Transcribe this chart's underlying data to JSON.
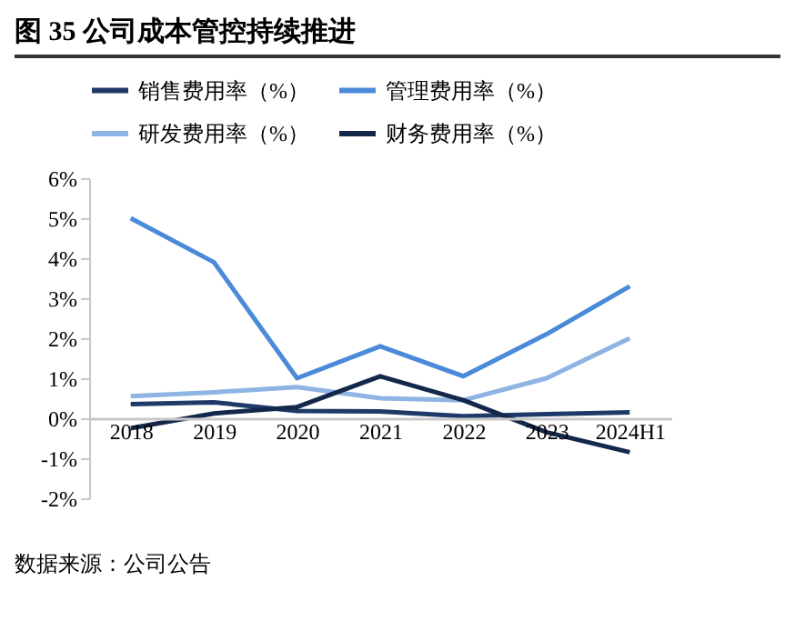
{
  "chart_data": {
    "type": "line",
    "title": "图 35 公司成本管控持续推进",
    "categories": [
      "2018",
      "2019",
      "2020",
      "2021",
      "2022",
      "2023",
      "2024H1"
    ],
    "series": [
      {
        "name": "销售费用率（%）",
        "color": "#1f3a68",
        "values": [
          0.35,
          0.4,
          0.18,
          0.17,
          0.05,
          0.1,
          0.15
        ]
      },
      {
        "name": "管理费用率（%）",
        "color": "#4a8ad8",
        "values": [
          5.0,
          3.9,
          1.0,
          1.8,
          1.05,
          2.1,
          3.3
        ]
      },
      {
        "name": "研发费用率（%）",
        "color": "#8db4e2",
        "values": [
          0.55,
          0.65,
          0.78,
          0.5,
          0.45,
          1.0,
          2.0
        ]
      },
      {
        "name": "财务费用率（%）",
        "color": "#14284b",
        "values": [
          -0.25,
          0.12,
          0.28,
          1.05,
          0.45,
          -0.35,
          -0.85
        ]
      }
    ],
    "ylim": [
      -2,
      6
    ],
    "yticks": [
      {
        "value": -2,
        "label": "-2%"
      },
      {
        "value": -1,
        "label": "-1%"
      },
      {
        "value": 0,
        "label": "0%"
      },
      {
        "value": 1,
        "label": "1%"
      },
      {
        "value": 2,
        "label": "2%"
      },
      {
        "value": 3,
        "label": "3%"
      },
      {
        "value": 4,
        "label": "4%"
      },
      {
        "value": 5,
        "label": "5%"
      },
      {
        "value": 6,
        "label": "6%"
      }
    ],
    "grid": false,
    "legend": "top",
    "marker": "none",
    "line_style": "solid",
    "annotations": [
      "数据来源：公司公告"
    ]
  }
}
